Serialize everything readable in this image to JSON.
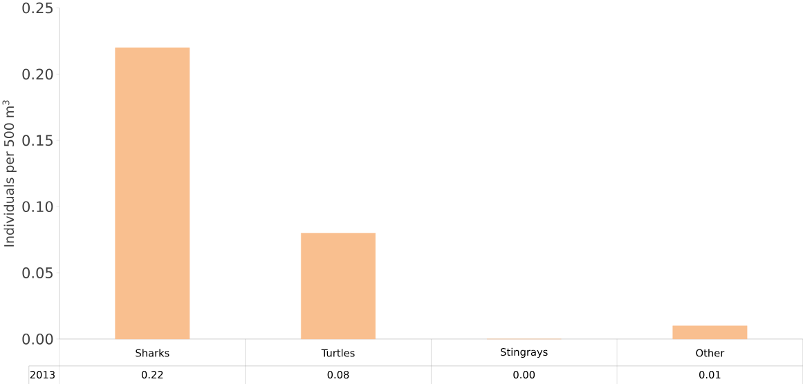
{
  "chart_data": {
    "type": "bar",
    "ylabel": "Individuals per 500 m$^{3}$",
    "categories": [
      "Sharks",
      "Turtles",
      "Stingrays",
      "Other"
    ],
    "series": [
      {
        "name": "2013",
        "color": "#f9bf8f",
        "values": [
          0.22,
          0.08,
          0.0,
          0.01
        ],
        "value_labels": [
          "0.22",
          "0.08",
          "0.00",
          "0.01"
        ]
      }
    ],
    "ylim": [
      0,
      0.25
    ],
    "yticks": [
      {
        "value": 0,
        "label": "0.00"
      },
      {
        "value": 0.05,
        "label": "0.05"
      },
      {
        "value": 0.1,
        "label": "0.10"
      },
      {
        "value": 0.15,
        "label": "0.15"
      },
      {
        "value": 0.2,
        "label": "0.20"
      },
      {
        "value": 0.25,
        "label": "0.25"
      }
    ],
    "grid": false
  }
}
